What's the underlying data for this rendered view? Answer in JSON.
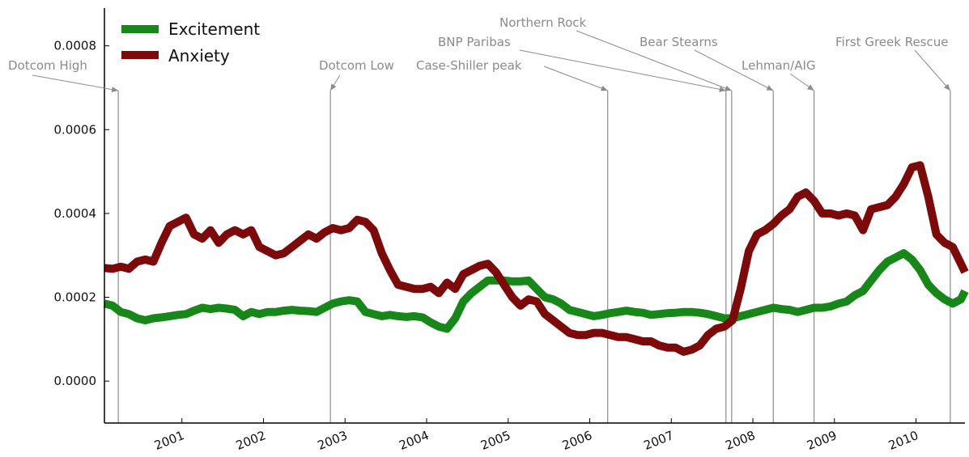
{
  "chart_data": {
    "type": "line",
    "xlim": [
      2000.05,
      2010.6
    ],
    "ylim": [
      -0.0001,
      0.00089
    ],
    "grid": false,
    "legend_position": "top-left",
    "y_ticks": [
      {
        "value": 0.0,
        "label": "0.0000"
      },
      {
        "value": 0.0002,
        "label": "0.0002"
      },
      {
        "value": 0.0004,
        "label": "0.0004"
      },
      {
        "value": 0.0006,
        "label": "0.0006"
      },
      {
        "value": 0.0008,
        "label": "0.0008"
      }
    ],
    "x_ticks": [
      {
        "value": 2001,
        "label": "2001"
      },
      {
        "value": 2002,
        "label": "2002"
      },
      {
        "value": 2003,
        "label": "2003"
      },
      {
        "value": 2004,
        "label": "2004"
      },
      {
        "value": 2005,
        "label": "2005"
      },
      {
        "value": 2006,
        "label": "2006"
      },
      {
        "value": 2007,
        "label": "2007"
      },
      {
        "value": 2008,
        "label": "2008"
      },
      {
        "value": 2009,
        "label": "2009"
      },
      {
        "value": 2010,
        "label": "2010"
      }
    ],
    "series": [
      {
        "name": "Excitement",
        "color": "#17871a",
        "x": [
          2000.05,
          2000.15,
          2000.25,
          2000.35,
          2000.45,
          2000.55,
          2000.65,
          2000.75,
          2000.85,
          2000.95,
          2001.05,
          2001.15,
          2001.25,
          2001.35,
          2001.45,
          2001.55,
          2001.65,
          2001.75,
          2001.85,
          2001.95,
          2002.05,
          2002.15,
          2002.25,
          2002.35,
          2002.45,
          2002.55,
          2002.65,
          2002.75,
          2002.85,
          2002.95,
          2003.05,
          2003.15,
          2003.25,
          2003.35,
          2003.45,
          2003.55,
          2003.65,
          2003.75,
          2003.85,
          2003.95,
          2004.05,
          2004.15,
          2004.25,
          2004.35,
          2004.45,
          2004.55,
          2004.65,
          2004.75,
          2004.85,
          2004.95,
          2005.05,
          2005.15,
          2005.25,
          2005.35,
          2005.45,
          2005.55,
          2005.65,
          2005.75,
          2005.85,
          2005.95,
          2006.05,
          2006.15,
          2006.25,
          2006.35,
          2006.45,
          2006.55,
          2006.65,
          2006.75,
          2006.85,
          2006.95,
          2007.05,
          2007.15,
          2007.25,
          2007.35,
          2007.45,
          2007.55,
          2007.65,
          2007.75,
          2007.85,
          2007.95,
          2008.05,
          2008.15,
          2008.25,
          2008.35,
          2008.45,
          2008.55,
          2008.65,
          2008.75,
          2008.85,
          2008.95,
          2009.05,
          2009.15,
          2009.25,
          2009.35,
          2009.45,
          2009.55,
          2009.65,
          2009.75,
          2009.85,
          2009.95,
          2010.05,
          2010.15,
          2010.25,
          2010.35,
          2010.45,
          2010.55,
          2010.6
        ],
        "values": [
          0.000185,
          0.00018,
          0.000165,
          0.00016,
          0.00015,
          0.000145,
          0.00015,
          0.000152,
          0.000155,
          0.000158,
          0.00016,
          0.000168,
          0.000175,
          0.000172,
          0.000175,
          0.000173,
          0.00017,
          0.000155,
          0.000165,
          0.00016,
          0.000165,
          0.000165,
          0.000168,
          0.00017,
          0.000168,
          0.000167,
          0.000165,
          0.000175,
          0.000185,
          0.00019,
          0.000193,
          0.00019,
          0.000165,
          0.00016,
          0.000155,
          0.000158,
          0.000155,
          0.000153,
          0.000155,
          0.000152,
          0.00014,
          0.00013,
          0.000125,
          0.00015,
          0.00019,
          0.00021,
          0.000225,
          0.00024,
          0.00024,
          0.00024,
          0.000238,
          0.000238,
          0.00024,
          0.00022,
          0.0002,
          0.000195,
          0.000185,
          0.00017,
          0.000165,
          0.00016,
          0.000155,
          0.000158,
          0.000162,
          0.000165,
          0.000168,
          0.000165,
          0.000163,
          0.000158,
          0.00016,
          0.000162,
          0.000163,
          0.000165,
          0.000165,
          0.000163,
          0.00016,
          0.000155,
          0.00015,
          0.00015,
          0.000155,
          0.00016,
          0.000165,
          0.00017,
          0.000175,
          0.000172,
          0.00017,
          0.000165,
          0.00017,
          0.000175,
          0.000175,
          0.000178,
          0.000185,
          0.00019,
          0.000205,
          0.000215,
          0.00024,
          0.000265,
          0.000285,
          0.000295,
          0.000305,
          0.00029,
          0.000265,
          0.00023,
          0.00021,
          0.000195,
          0.000185,
          0.000195,
          0.000215
        ]
      },
      {
        "name": "Anxiety",
        "color": "#7d0a0a",
        "x": [
          2000.05,
          2000.15,
          2000.25,
          2000.35,
          2000.45,
          2000.55,
          2000.65,
          2000.75,
          2000.85,
          2000.95,
          2001.05,
          2001.15,
          2001.25,
          2001.35,
          2001.45,
          2001.55,
          2001.65,
          2001.75,
          2001.85,
          2001.95,
          2002.05,
          2002.15,
          2002.25,
          2002.35,
          2002.45,
          2002.55,
          2002.65,
          2002.75,
          2002.85,
          2002.95,
          2003.05,
          2003.15,
          2003.25,
          2003.35,
          2003.45,
          2003.55,
          2003.65,
          2003.75,
          2003.85,
          2003.95,
          2004.05,
          2004.15,
          2004.25,
          2004.35,
          2004.45,
          2004.55,
          2004.65,
          2004.75,
          2004.85,
          2004.95,
          2005.05,
          2005.15,
          2005.25,
          2005.35,
          2005.45,
          2005.55,
          2005.65,
          2005.75,
          2005.85,
          2005.95,
          2006.05,
          2006.15,
          2006.25,
          2006.35,
          2006.45,
          2006.55,
          2006.65,
          2006.75,
          2006.85,
          2006.95,
          2007.05,
          2007.15,
          2007.25,
          2007.35,
          2007.45,
          2007.55,
          2007.65,
          2007.75,
          2007.85,
          2007.95,
          2008.05,
          2008.15,
          2008.25,
          2008.35,
          2008.45,
          2008.55,
          2008.65,
          2008.75,
          2008.85,
          2008.95,
          2009.05,
          2009.15,
          2009.25,
          2009.35,
          2009.45,
          2009.55,
          2009.65,
          2009.75,
          2009.85,
          2009.95,
          2010.05,
          2010.15,
          2010.25,
          2010.35,
          2010.45,
          2010.55,
          2010.6
        ],
        "values": [
          0.00027,
          0.000268,
          0.000273,
          0.000268,
          0.000285,
          0.00029,
          0.000285,
          0.00033,
          0.00037,
          0.00038,
          0.00039,
          0.00035,
          0.00034,
          0.00036,
          0.00033,
          0.00035,
          0.00036,
          0.00035,
          0.00036,
          0.00032,
          0.00031,
          0.0003,
          0.000305,
          0.00032,
          0.000335,
          0.00035,
          0.00034,
          0.000355,
          0.000365,
          0.00036,
          0.000365,
          0.000385,
          0.00038,
          0.00036,
          0.000305,
          0.000265,
          0.00023,
          0.000225,
          0.00022,
          0.00022,
          0.000225,
          0.00021,
          0.000235,
          0.00022,
          0.000255,
          0.000265,
          0.000275,
          0.00028,
          0.00026,
          0.00023,
          0.0002,
          0.00018,
          0.000195,
          0.00019,
          0.00016,
          0.000145,
          0.00013,
          0.000115,
          0.00011,
          0.00011,
          0.000115,
          0.000115,
          0.00011,
          0.000105,
          0.000105,
          0.0001,
          9.5e-05,
          9.5e-05,
          8.5e-05,
          8e-05,
          8e-05,
          7e-05,
          7.5e-05,
          8.5e-05,
          0.00011,
          0.000125,
          0.00013,
          0.000145,
          0.00022,
          0.00031,
          0.00035,
          0.00036,
          0.000375,
          0.000395,
          0.00041,
          0.00044,
          0.00045,
          0.00043,
          0.0004,
          0.0004,
          0.000395,
          0.0004,
          0.000395,
          0.00036,
          0.00041,
          0.000415,
          0.00042,
          0.00044,
          0.00047,
          0.00051,
          0.000515,
          0.00044,
          0.00035,
          0.00033,
          0.00032,
          0.00028,
          0.00026
        ]
      }
    ],
    "events": [
      {
        "name": "Dotcom High",
        "x": 2000.22
      },
      {
        "name": "Dotcom Low",
        "x": 2002.82
      },
      {
        "name": "Case-Shiller peak",
        "x": 2006.22
      },
      {
        "name": "BNP Paribas",
        "x": 2007.67
      },
      {
        "name": "Northern Rock",
        "x": 2007.74
      },
      {
        "name": "Bear Stearns",
        "x": 2008.25
      },
      {
        "name": "Lehman/AIG",
        "x": 2008.75
      },
      {
        "name": "First Greek Rescue",
        "x": 2010.42
      }
    ]
  }
}
